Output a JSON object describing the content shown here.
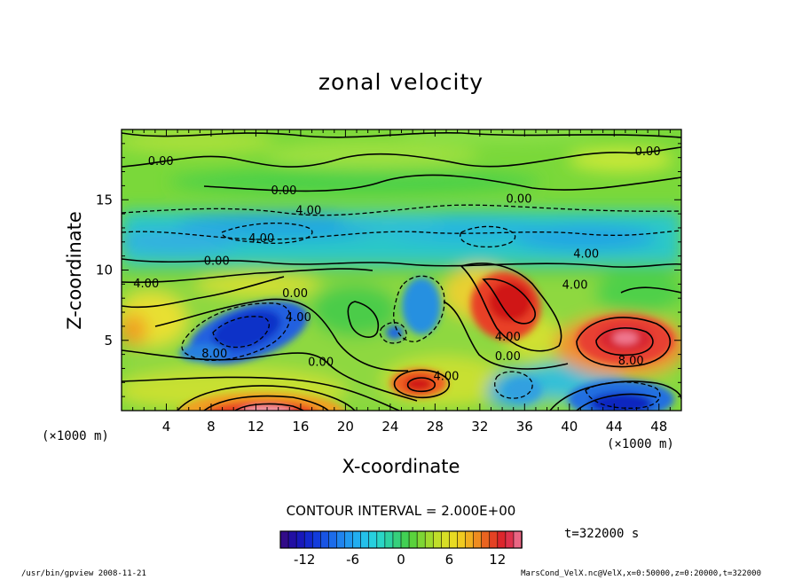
{
  "chart_data": {
    "type": "heatmap",
    "title": "zonal velocity",
    "xlabel": "X-coordinate",
    "ylabel": "Z-coordinate",
    "x_unit_label": "(×1000 m)",
    "z_unit_label": "(×1000 m)",
    "xlim": [
      0,
      50
    ],
    "ylim": [
      0,
      20
    ],
    "x_ticks": [
      4,
      8,
      12,
      16,
      20,
      24,
      28,
      32,
      36,
      40,
      44,
      48
    ],
    "y_ticks": [
      5,
      10,
      15
    ],
    "contour_interval_label": "CONTOUR INTERVAL = 2.000E+00",
    "time_label": "t=322000 s",
    "colorbar": {
      "min": -15,
      "max": 15,
      "ticks": [
        -12,
        -6,
        0,
        6,
        12
      ]
    },
    "contour_labels": [
      {
        "x": 3.5,
        "z": 17.8,
        "text": "0.00"
      },
      {
        "x": 14.5,
        "z": 15.7,
        "text": "0.00"
      },
      {
        "x": 47,
        "z": 18.5,
        "text": "0.00"
      },
      {
        "x": 35.5,
        "z": 15.1,
        "text": "0.00"
      },
      {
        "x": 16.7,
        "z": 14.3,
        "text": "4.00"
      },
      {
        "x": 12.5,
        "z": 12.3,
        "text": "4.00"
      },
      {
        "x": 41.5,
        "z": 11.2,
        "text": "4.00"
      },
      {
        "x": 8.5,
        "z": 10.7,
        "text": "0.00"
      },
      {
        "x": 2.2,
        "z": 9.1,
        "text": "4.00"
      },
      {
        "x": 15.5,
        "z": 8.4,
        "text": "0.00"
      },
      {
        "x": 40.5,
        "z": 9.0,
        "text": "4.00"
      },
      {
        "x": 15.8,
        "z": 6.7,
        "text": "4.00"
      },
      {
        "x": 8.3,
        "z": 4.1,
        "text": "8.00"
      },
      {
        "x": 17.8,
        "z": 3.5,
        "text": "0.00"
      },
      {
        "x": 34.5,
        "z": 5.3,
        "text": "4.00"
      },
      {
        "x": 34.5,
        "z": 3.9,
        "text": "0.00"
      },
      {
        "x": 45.5,
        "z": 3.6,
        "text": "8.00"
      },
      {
        "x": 29,
        "z": 2.5,
        "text": "4.00"
      }
    ],
    "features": [
      {
        "x": 11,
        "z": 5.8,
        "value": -12
      },
      {
        "x": 26.5,
        "z": 1.7,
        "value": 12
      },
      {
        "x": 34.5,
        "z": 7.8,
        "value": 11
      },
      {
        "x": 45,
        "z": 5.2,
        "value": 11
      },
      {
        "x": 12.5,
        "z": 0.5,
        "value": 14
      },
      {
        "x": 45,
        "z": 1.0,
        "value": -11
      },
      {
        "x": 27,
        "z": 7.5,
        "value": -6
      },
      {
        "x": 14.5,
        "z": 13.0,
        "value": -6
      },
      {
        "x": 41.5,
        "z": 13.0,
        "value": -5
      },
      {
        "x": 30,
        "z": 12.5,
        "value": -5
      }
    ]
  },
  "footer": {
    "left": "/usr/bin/gpview  2008-11-21",
    "right": "MarsCond_VelX.nc@VelX,x=0:50000,z=0:20000,t=322000"
  }
}
